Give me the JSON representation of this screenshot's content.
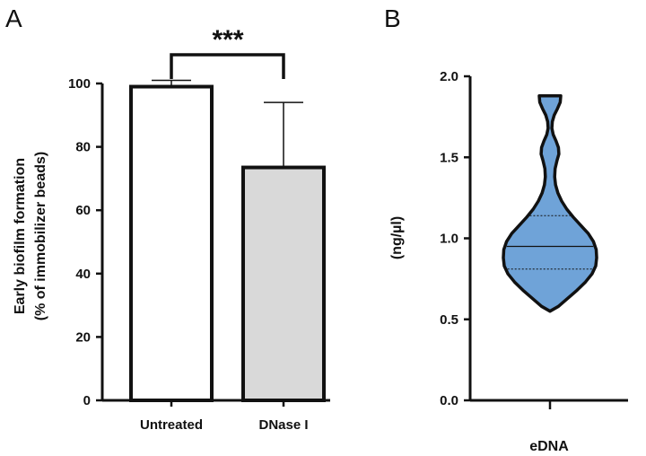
{
  "chart_data": [
    {
      "panel": "A",
      "type": "bar",
      "categories": [
        "Untreated",
        "DNase I"
      ],
      "values": [
        99,
        73.5
      ],
      "error_upper": [
        101,
        94
      ],
      "ylim": [
        0,
        100
      ],
      "yticks": [
        0,
        20,
        40,
        60,
        80,
        100
      ],
      "ylabel_line1": "Early biofilm formation",
      "ylabel_line2": "(% of immobilizer beads)",
      "colors": [
        "#ffffff",
        "#d9d9d9"
      ],
      "significance": "***"
    },
    {
      "panel": "B",
      "type": "violin",
      "category": "eDNA",
      "ylabel": "(ng/µl)",
      "ylim": [
        0,
        2.0
      ],
      "yticks": [
        "0.0",
        "0.5",
        "1.0",
        "1.5",
        "2.0"
      ],
      "median": 0.95,
      "quartiles": [
        0.81,
        1.14
      ],
      "min": 0.55,
      "max": 1.88,
      "fill_color": "#6fa3d8",
      "density_profile": [
        [
          0.55,
          0.0
        ],
        [
          0.58,
          0.18
        ],
        [
          0.63,
          0.38
        ],
        [
          0.68,
          0.58
        ],
        [
          0.73,
          0.76
        ],
        [
          0.78,
          0.9
        ],
        [
          0.83,
          0.98
        ],
        [
          0.88,
          1.0
        ],
        [
          0.93,
          0.99
        ],
        [
          0.98,
          0.93
        ],
        [
          1.03,
          0.82
        ],
        [
          1.08,
          0.66
        ],
        [
          1.13,
          0.5
        ],
        [
          1.18,
          0.36
        ],
        [
          1.23,
          0.25
        ],
        [
          1.28,
          0.17
        ],
        [
          1.33,
          0.12
        ],
        [
          1.38,
          0.1
        ],
        [
          1.43,
          0.11
        ],
        [
          1.48,
          0.15
        ],
        [
          1.52,
          0.19
        ],
        [
          1.56,
          0.18
        ],
        [
          1.6,
          0.13
        ],
        [
          1.64,
          0.07
        ],
        [
          1.68,
          0.04
        ],
        [
          1.72,
          0.05
        ],
        [
          1.76,
          0.09
        ],
        [
          1.8,
          0.16
        ],
        [
          1.84,
          0.22
        ],
        [
          1.88,
          0.23
        ]
      ]
    }
  ]
}
